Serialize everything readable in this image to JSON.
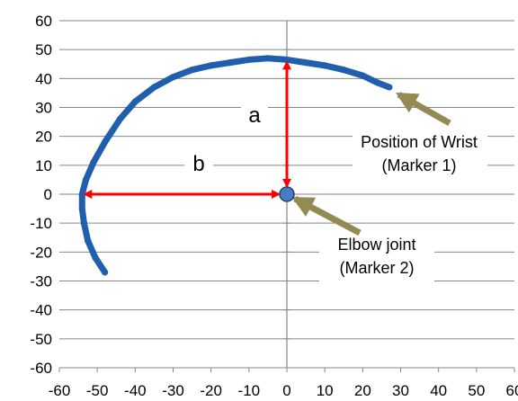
{
  "chart_data": {
    "type": "scatter",
    "title": "",
    "xlabel": "",
    "ylabel": "",
    "xlim": [
      -60,
      60
    ],
    "ylim": [
      -60,
      60
    ],
    "x_ticks": [
      -60,
      -50,
      -40,
      -30,
      -20,
      -10,
      0,
      10,
      20,
      30,
      40,
      50,
      60
    ],
    "y_ticks": [
      60,
      50,
      40,
      30,
      20,
      10,
      0,
      -10,
      -20,
      -30,
      -40,
      -50,
      -60
    ],
    "grid": "horizontal",
    "legend": "none",
    "series": [
      {
        "marker": "trajectory-points",
        "color": "#1f5fad",
        "points": [
          [
            27,
            37
          ],
          [
            24,
            38.5
          ],
          [
            20,
            41
          ],
          [
            15,
            43
          ],
          [
            10,
            44.5
          ],
          [
            5,
            45.5
          ],
          [
            0,
            46.5
          ],
          [
            -5,
            47
          ],
          [
            -10,
            46.5
          ],
          [
            -15,
            45.5
          ],
          [
            -20,
            44.5
          ],
          [
            -25,
            43
          ],
          [
            -30,
            40.5
          ],
          [
            -35,
            37
          ],
          [
            -40,
            32
          ],
          [
            -44,
            26
          ],
          [
            -48,
            18
          ],
          [
            -51,
            11
          ],
          [
            -53,
            5
          ],
          [
            -54,
            0
          ],
          [
            -54,
            -5
          ],
          [
            -53.5,
            -10
          ],
          [
            -52.5,
            -16
          ],
          [
            -50.5,
            -22
          ],
          [
            -48,
            -27
          ]
        ]
      },
      {
        "marker": "elbow-joint",
        "color": "#4a7cc4",
        "points": [
          [
            0,
            0
          ]
        ]
      }
    ],
    "annotations": {
      "arrow_color": "#ff0000",
      "pointer_color": "#948a54",
      "a_label": "a",
      "b_label": "b",
      "wrist_label_line1": "Position of Wrist",
      "wrist_label_line2": "(Marker 1)",
      "elbow_label_line1": "Elbow joint",
      "elbow_label_line2": "(Marker 2)"
    }
  }
}
